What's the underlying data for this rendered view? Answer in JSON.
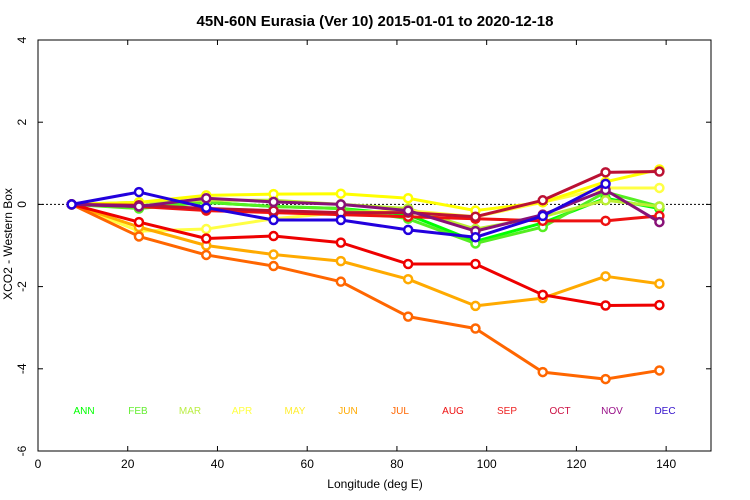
{
  "chart_data": {
    "type": "line",
    "title": "45N-60N Eurasia (Ver 10)   2015-01-01 to 2020-12-18",
    "xlabel": "Longitude (deg E)",
    "ylabel": "XCO2 - Western Box",
    "xlim": [
      0,
      150
    ],
    "ylim": [
      -6,
      4
    ],
    "xticks": [
      0,
      20,
      40,
      60,
      80,
      100,
      120,
      140
    ],
    "yticks": [
      -6,
      -4,
      -2,
      0,
      2,
      4
    ],
    "x": [
      7.5,
      22.5,
      37.5,
      52.5,
      67.5,
      82.5,
      97.5,
      112.5,
      127.5,
      142.5
    ],
    "series": [
      {
        "name": "ANN",
        "color": "#00ff00",
        "legend_color": "#00ff00",
        "x": [
          7.5,
          22.5,
          37.5,
          52.5,
          67.5,
          82.5,
          97.5,
          112.5,
          126.5,
          138.5
        ],
        "values": [
          0,
          -0.05,
          0.05,
          -0.05,
          -0.1,
          -0.25,
          -0.9,
          -0.45,
          0.15,
          -0.1
        ]
      },
      {
        "name": "FEB",
        "color": "#55ee22",
        "legend_color": "#66ee33",
        "x": [
          7.5,
          22.5,
          37.5,
          52.5,
          67.5,
          82.5,
          97.5,
          112.5,
          126.5,
          138.5
        ],
        "values": [
          0,
          -0.1,
          0.05,
          -0.05,
          -0.1,
          -0.35,
          -0.95,
          -0.55,
          0.3,
          -0.05
        ]
      },
      {
        "name": "MAR",
        "color": "#bbee33",
        "legend_color": "#bbee44",
        "x": [
          7.5,
          22.5,
          37.5,
          52.5,
          67.5,
          82.5,
          97.5,
          112.5,
          126.5,
          138.5
        ],
        "values": [
          0,
          0.05,
          0.1,
          0.1,
          0.0,
          -0.1,
          -0.6,
          -0.3,
          0.1,
          -0.05
        ]
      },
      {
        "name": "APR",
        "color": "#ffff44",
        "legend_color": "#ffff44",
        "x": [
          7.5,
          22.5,
          37.5,
          52.5,
          67.5,
          82.5,
          97.5,
          112.5,
          126.5,
          138.5
        ],
        "values": [
          0,
          -0.65,
          -0.6,
          -0.35,
          -0.2,
          -0.15,
          -0.3,
          0.05,
          0.4,
          0.4
        ]
      },
      {
        "name": "MAY",
        "color": "#ffff00",
        "legend_color": "#ffee33",
        "x": [
          7.5,
          22.5,
          37.5,
          52.5,
          67.5,
          82.5,
          97.5,
          112.5,
          126.5,
          138.5
        ],
        "values": [
          0,
          0.05,
          0.22,
          0.25,
          0.26,
          0.15,
          -0.15,
          0.05,
          0.55,
          0.85
        ]
      },
      {
        "name": "JUN",
        "color": "#ffaa00",
        "legend_color": "#ffaa00",
        "x": [
          7.5,
          22.5,
          37.5,
          52.5,
          67.5,
          82.5,
          97.5,
          112.5,
          126.5,
          138.5
        ],
        "values": [
          0,
          -0.55,
          -1.0,
          -1.22,
          -1.38,
          -1.82,
          -2.47,
          -2.28,
          -1.75,
          -1.93
        ]
      },
      {
        "name": "JUL",
        "color": "#ff6600",
        "legend_color": "#ff6600",
        "x": [
          7.5,
          22.5,
          37.5,
          52.5,
          67.5,
          82.5,
          97.5,
          112.5,
          126.5,
          138.5
        ],
        "values": [
          0,
          -0.78,
          -1.23,
          -1.5,
          -1.88,
          -2.73,
          -3.02,
          -4.08,
          -4.25,
          -4.04
        ]
      },
      {
        "name": "AUG",
        "color": "#ee0000",
        "legend_color": "#ee1111",
        "x": [
          7.5,
          22.5,
          37.5,
          52.5,
          67.5,
          82.5,
          97.5,
          112.5,
          126.5,
          138.5
        ],
        "values": [
          0,
          -0.43,
          -0.83,
          -0.77,
          -0.93,
          -1.45,
          -1.45,
          -2.2,
          -2.46,
          -2.45
        ]
      },
      {
        "name": "SEP",
        "color": "#ee1111",
        "legend_color": "#ee2222",
        "x": [
          7.5,
          22.5,
          37.5,
          52.5,
          67.5,
          82.5,
          97.5,
          112.5,
          126.5,
          138.5
        ],
        "values": [
          0,
          -0.05,
          -0.15,
          -0.2,
          -0.25,
          -0.3,
          -0.35,
          -0.4,
          -0.4,
          -0.28
        ]
      },
      {
        "name": "OCT",
        "color": "#bb1133",
        "legend_color": "#cc1144",
        "x": [
          7.5,
          22.5,
          37.5,
          52.5,
          67.5,
          82.5,
          97.5,
          112.5,
          126.5,
          138.5
        ],
        "values": [
          0,
          -0.02,
          -0.1,
          -0.15,
          -0.2,
          -0.2,
          -0.3,
          0.1,
          0.78,
          0.8
        ]
      },
      {
        "name": "NOV",
        "color": "#881177",
        "legend_color": "#991188",
        "x": [
          7.5,
          22.5,
          37.5,
          52.5,
          67.5,
          82.5,
          97.5,
          112.5,
          126.5,
          138.5
        ],
        "values": [
          0,
          -0.05,
          0.15,
          0.06,
          0.0,
          -0.15,
          -0.65,
          -0.25,
          0.35,
          -0.43
        ]
      },
      {
        "name": "DEC",
        "color": "#2200dd",
        "legend_color": "#3311cc",
        "x": [
          7.5,
          22.5,
          37.5,
          52.5,
          67.5,
          82.5,
          97.5,
          112.5,
          126.5
        ],
        "values": [
          0,
          0.3,
          -0.08,
          -0.38,
          -0.38,
          -0.62,
          -0.8,
          -0.28,
          0.5
        ]
      }
    ]
  }
}
